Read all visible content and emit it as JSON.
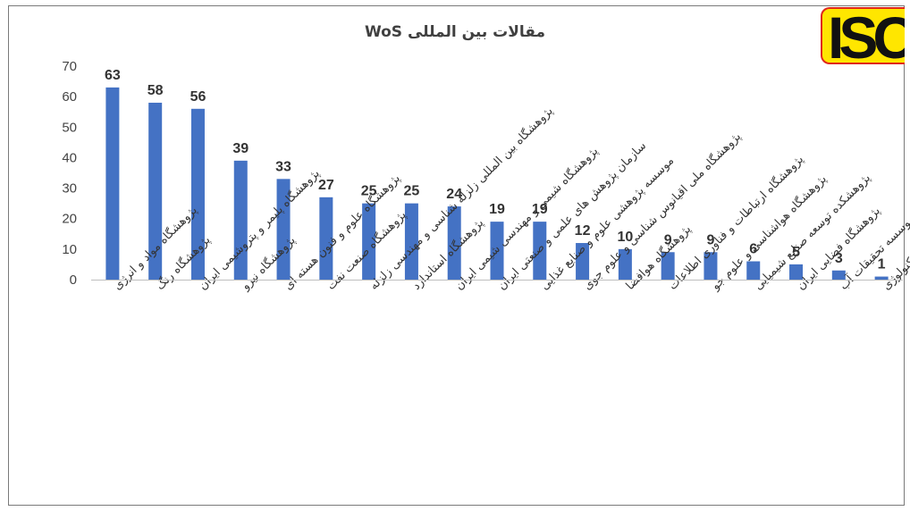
{
  "logo": {
    "text": "ISC"
  },
  "chart_data": {
    "type": "bar",
    "title": "مقالات بین المللی WoS",
    "xlabel": "",
    "ylabel": "",
    "ylim": [
      0,
      70
    ],
    "yticks": [
      0,
      10,
      20,
      30,
      40,
      50,
      60,
      70
    ],
    "grid": false,
    "bar_color": "#4472c4",
    "categories": [
      "پژوهشگاه مواد و انرژی",
      "پژوهشگاه رنگ",
      "پژوهشگاه پلیمر و پتروشیمی ایران",
      "پژوهشگاه نیرو",
      "پژوهشگاه علوم و فنون هسته ای",
      "پژوهشگاه صنعت نفت",
      "پژوهشگاه بین المللی زلزله شناسی و مهندسی زلزله",
      "پژوهشگاه استاندارد",
      "پژوهشگاه شیمی و مهندسی شیمی ایران",
      "سازمان پژوهش های علمی و صنعتی ایران",
      "موسسه پژوهشی علوم و صنایع غذایی",
      "پژوهشگاه ملی اقیانوس شناسی و علوم جوی",
      "پژوهشگاه هوافضا",
      "پژوهشگاه ارتباطات و فناوری اطلاعات",
      "پژوهشگاه هواشناسی و علوم جو",
      "پژوهشکده توسعه صنایع شیمیایی",
      "پژوهشگاه فضایی ایران",
      "موسسه تحقیقات آب",
      "پژوهشکده توسعه تکنولوژی"
    ],
    "values": [
      63,
      58,
      56,
      39,
      33,
      27,
      25,
      25,
      24,
      19,
      19,
      12,
      10,
      9,
      9,
      6,
      5,
      3,
      1
    ]
  }
}
